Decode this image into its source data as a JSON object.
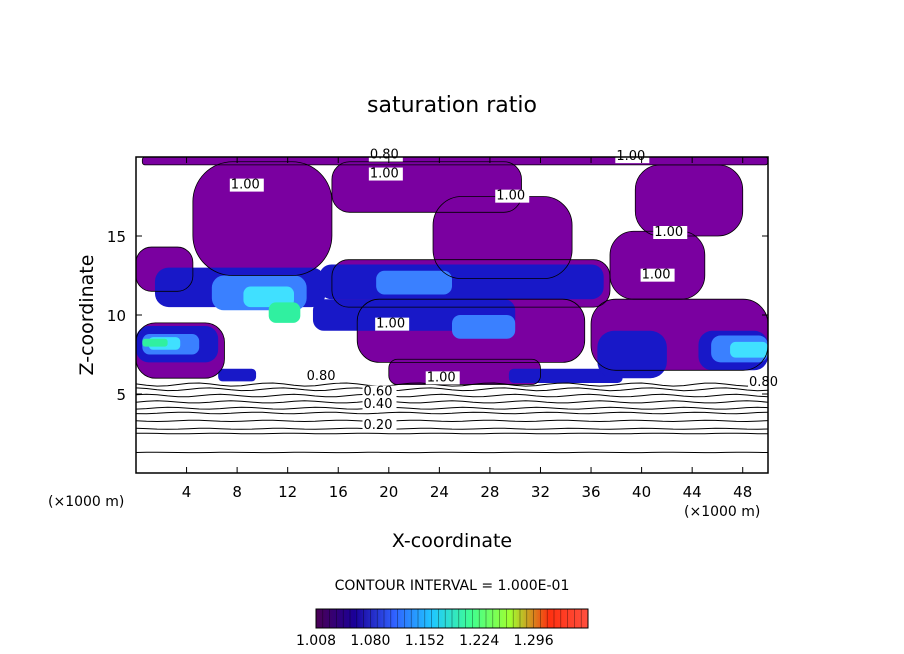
{
  "chart_data": {
    "type": "heatmap",
    "title": "saturation ratio",
    "xlabel": "X-coordinate",
    "ylabel": "Z-coordinate",
    "x_unit_left": "(×1000 m)",
    "x_unit_right": "(×1000 m)",
    "x_ticks": [
      4,
      8,
      12,
      16,
      20,
      24,
      28,
      32,
      36,
      40,
      44,
      48
    ],
    "y_ticks": [
      5,
      10,
      15
    ],
    "xlim": [
      0,
      50
    ],
    "ylim": [
      0,
      20
    ],
    "contour_interval_text": "CONTOUR INTERVAL = 1.000E-01",
    "contour_labels": [
      {
        "text": "0.80",
        "x": 18.5,
        "z": 19.9
      },
      {
        "text": "1.00",
        "x": 18.5,
        "z": 18.7
      },
      {
        "text": "1.00",
        "x": 38.0,
        "z": 19.8
      },
      {
        "text": "1.00",
        "x": 7.5,
        "z": 18.0
      },
      {
        "text": "1.00",
        "x": 28.5,
        "z": 17.3
      },
      {
        "text": "1.00",
        "x": 41.0,
        "z": 15.0
      },
      {
        "text": "1.00",
        "x": 40.0,
        "z": 12.3
      },
      {
        "text": "1.00",
        "x": 19.0,
        "z": 9.2
      },
      {
        "text": "0.80",
        "x": 13.5,
        "z": 5.9
      },
      {
        "text": "1.00",
        "x": 23.0,
        "z": 5.8
      },
      {
        "text": "0.60",
        "x": 18.0,
        "z": 4.9
      },
      {
        "text": "0.40",
        "x": 18.0,
        "z": 4.1
      },
      {
        "text": "0.20",
        "x": 18.0,
        "z": 2.8
      },
      {
        "text": "0.80",
        "x": 48.5,
        "z": 5.5
      }
    ],
    "colorbar": {
      "min": 1.008,
      "max": 1.368,
      "tick_labels": [
        "1.008",
        "1.080",
        "1.152",
        "1.224",
        "1.296"
      ],
      "colors": [
        "#4b0055",
        "#1a0099",
        "#3060ff",
        "#20c8ff",
        "#40ff90",
        "#a0ff30",
        "#ff3010",
        "#ff5040"
      ]
    },
    "fill_colors": {
      "saturated": "#7a00a0",
      "dark_blue": "#1818c8",
      "blue": "#3a80ff",
      "cyan": "#40e0ff",
      "green": "#30f0a0"
    },
    "cloud_regions": [
      {
        "level": "saturated",
        "x0": 0.5,
        "x1": 50,
        "z0": 19.5,
        "z1": 20
      },
      {
        "level": "saturated",
        "x0": 4.5,
        "x1": 15.5,
        "z0": 12.5,
        "z1": 19.7
      },
      {
        "level": "saturated",
        "x0": 15.5,
        "x1": 30.5,
        "z0": 16.5,
        "z1": 19.7
      },
      {
        "level": "saturated",
        "x0": 23.5,
        "x1": 34.5,
        "z0": 12.3,
        "z1": 17.5
      },
      {
        "level": "saturated",
        "x0": 39.5,
        "x1": 48.0,
        "z0": 15.0,
        "z1": 19.5
      },
      {
        "level": "saturated",
        "x0": 37.5,
        "x1": 45.0,
        "z0": 11.0,
        "z1": 15.3
      },
      {
        "level": "saturated",
        "x0": 0,
        "x1": 4.5,
        "z0": 11.5,
        "z1": 14.3
      },
      {
        "level": "saturated",
        "x0": 15.5,
        "x1": 37.5,
        "z0": 10.5,
        "z1": 13.5
      },
      {
        "level": "saturated",
        "x0": 17.5,
        "x1": 35.5,
        "z0": 7.0,
        "z1": 11.0
      },
      {
        "level": "saturated",
        "x0": 36.0,
        "x1": 50,
        "z0": 6.5,
        "z1": 11.0
      },
      {
        "level": "saturated",
        "x0": 0,
        "x1": 7.0,
        "z0": 6.0,
        "z1": 9.5
      },
      {
        "level": "saturated",
        "x0": 20.0,
        "x1": 32.0,
        "z0": 5.6,
        "z1": 7.2
      },
      {
        "level": "dark_blue",
        "x0": 1.5,
        "x1": 15.0,
        "z0": 10.5,
        "z1": 13.0
      },
      {
        "level": "dark_blue",
        "x0": 14.5,
        "x1": 37.0,
        "z0": 11.0,
        "z1": 13.2
      },
      {
        "level": "dark_blue",
        "x0": 14.0,
        "x1": 30.0,
        "z0": 9.0,
        "z1": 11.0
      },
      {
        "level": "dark_blue",
        "x0": 0,
        "x1": 6.5,
        "z0": 7.0,
        "z1": 9.3
      },
      {
        "level": "dark_blue",
        "x0": 44.5,
        "x1": 50,
        "z0": 6.5,
        "z1": 9.0
      },
      {
        "level": "dark_blue",
        "x0": 29.5,
        "x1": 38.5,
        "z0": 5.7,
        "z1": 6.6
      },
      {
        "level": "dark_blue",
        "x0": 6.5,
        "x1": 9.5,
        "z0": 5.8,
        "z1": 6.6
      },
      {
        "level": "dark_blue",
        "x0": 36.5,
        "x1": 42.0,
        "z0": 6.0,
        "z1": 9.0
      },
      {
        "level": "blue",
        "x0": 6.0,
        "x1": 13.5,
        "z0": 10.3,
        "z1": 12.5
      },
      {
        "level": "blue",
        "x0": 19.0,
        "x1": 25.0,
        "z0": 11.3,
        "z1": 12.8
      },
      {
        "level": "blue",
        "x0": 0.5,
        "x1": 5.0,
        "z0": 7.5,
        "z1": 8.8
      },
      {
        "level": "blue",
        "x0": 45.5,
        "x1": 50,
        "z0": 7.0,
        "z1": 8.7
      },
      {
        "level": "blue",
        "x0": 25.0,
        "x1": 30.0,
        "z0": 8.5,
        "z1": 10.0
      },
      {
        "level": "cyan",
        "x0": 8.5,
        "x1": 12.5,
        "z0": 10.5,
        "z1": 11.8
      },
      {
        "level": "cyan",
        "x0": 1.0,
        "x1": 3.5,
        "z0": 7.8,
        "z1": 8.6
      },
      {
        "level": "cyan",
        "x0": 47.0,
        "x1": 50,
        "z0": 7.3,
        "z1": 8.3
      },
      {
        "level": "green",
        "x0": 10.5,
        "x1": 13.0,
        "z0": 9.5,
        "z1": 10.8
      },
      {
        "level": "green",
        "x0": 0.5,
        "x1": 2.5,
        "z0": 8.0,
        "z1": 8.5
      }
    ],
    "stratified_contours_z": [
      1.3,
      2.5,
      2.8,
      3.3,
      3.8,
      4.1,
      4.5,
      4.9,
      5.3,
      5.6
    ]
  }
}
